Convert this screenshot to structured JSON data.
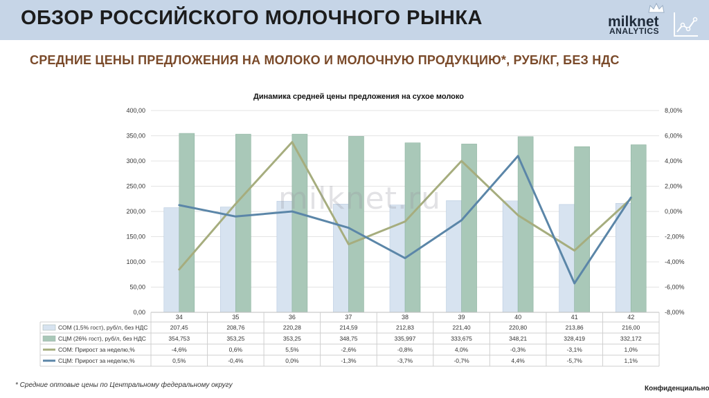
{
  "header": {
    "title": "ОБЗОР РОССИЙСКОГО МОЛОЧНОГО РЫНКА",
    "logo_line1": "milknet",
    "logo_line2": "ANALYTICS"
  },
  "subtitle": "СРЕДНИЕ ЦЕНЫ ПРЕДЛОЖЕНИЯ НА МОЛОКО И МОЛОЧНУЮ ПРОДУКЦИЮ*, РУБ/КГ, БЕЗ НДС",
  "watermark": "milknet.ru",
  "footnote": "* Средние оптовые цены по Центральному федеральному округу",
  "confidential": "Конфиденциально",
  "colors": {
    "header_bg": "#c6d5e7",
    "bar_som": "#d7e3f0",
    "bar_scm": "#a9c8b8",
    "line_som": "#a6ad7e",
    "line_scm": "#5b86a8"
  },
  "chart_data": {
    "type": "bar",
    "title": "Динамика средней цены предложения на сухое молоко",
    "categories": [
      "34",
      "35",
      "36",
      "37",
      "38",
      "39",
      "40",
      "41",
      "42"
    ],
    "y_left": {
      "min": 0,
      "max": 400,
      "step": 50,
      "ticks": [
        "0,00",
        "50,00",
        "100,00",
        "150,00",
        "200,00",
        "250,00",
        "300,00",
        "350,00",
        "400,00"
      ]
    },
    "y_right": {
      "min": -8,
      "max": 8,
      "step": 2,
      "ticks": [
        "-8,00%",
        "-6,00%",
        "-4,00%",
        "-2,00%",
        "0,00%",
        "2,00%",
        "4,00%",
        "6,00%",
        "8,00%"
      ]
    },
    "grid": true,
    "legend": "table-below",
    "series": [
      {
        "name": "СОМ (1,5% гост), руб/л, без НДС",
        "type": "bar",
        "axis": "left",
        "values": [
          207.45,
          208.76,
          220.28,
          214.59,
          212.83,
          221.4,
          220.8,
          213.86,
          216.0
        ],
        "labels": [
          "207,45",
          "208,76",
          "220,28",
          "214,59",
          "212,83",
          "221,40",
          "220,80",
          "213,86",
          "216,00"
        ]
      },
      {
        "name": "СЦМ (26% гост), руб/л, без НДС",
        "type": "bar",
        "axis": "left",
        "values": [
          354.753,
          353.25,
          353.25,
          348.75,
          335.997,
          333.675,
          348.21,
          328.419,
          332.172
        ],
        "labels": [
          "354,753",
          "353,25",
          "353,25",
          "348,75",
          "335,997",
          "333,675",
          "348,21",
          "328,419",
          "332,172"
        ]
      },
      {
        "name": "СОМ: Прирост за неделю,%",
        "type": "line",
        "axis": "right",
        "values": [
          -4.6,
          0.6,
          5.5,
          -2.6,
          -0.8,
          4.0,
          -0.3,
          -3.1,
          1.0
        ],
        "labels": [
          "-4,6%",
          "0,6%",
          "5,5%",
          "-2,6%",
          "-0,8%",
          "4,0%",
          "-0,3%",
          "-3,1%",
          "1,0%"
        ]
      },
      {
        "name": "СЦМ: Прирост за неделю,%",
        "type": "line",
        "axis": "right",
        "values": [
          0.5,
          -0.4,
          0.0,
          -1.3,
          -3.7,
          -0.7,
          4.4,
          -5.7,
          1.1
        ],
        "labels": [
          "0,5%",
          "-0,4%",
          "0,0%",
          "-1,3%",
          "-3,7%",
          "-0,7%",
          "4,4%",
          "-5,7%",
          "1,1%"
        ]
      }
    ]
  }
}
